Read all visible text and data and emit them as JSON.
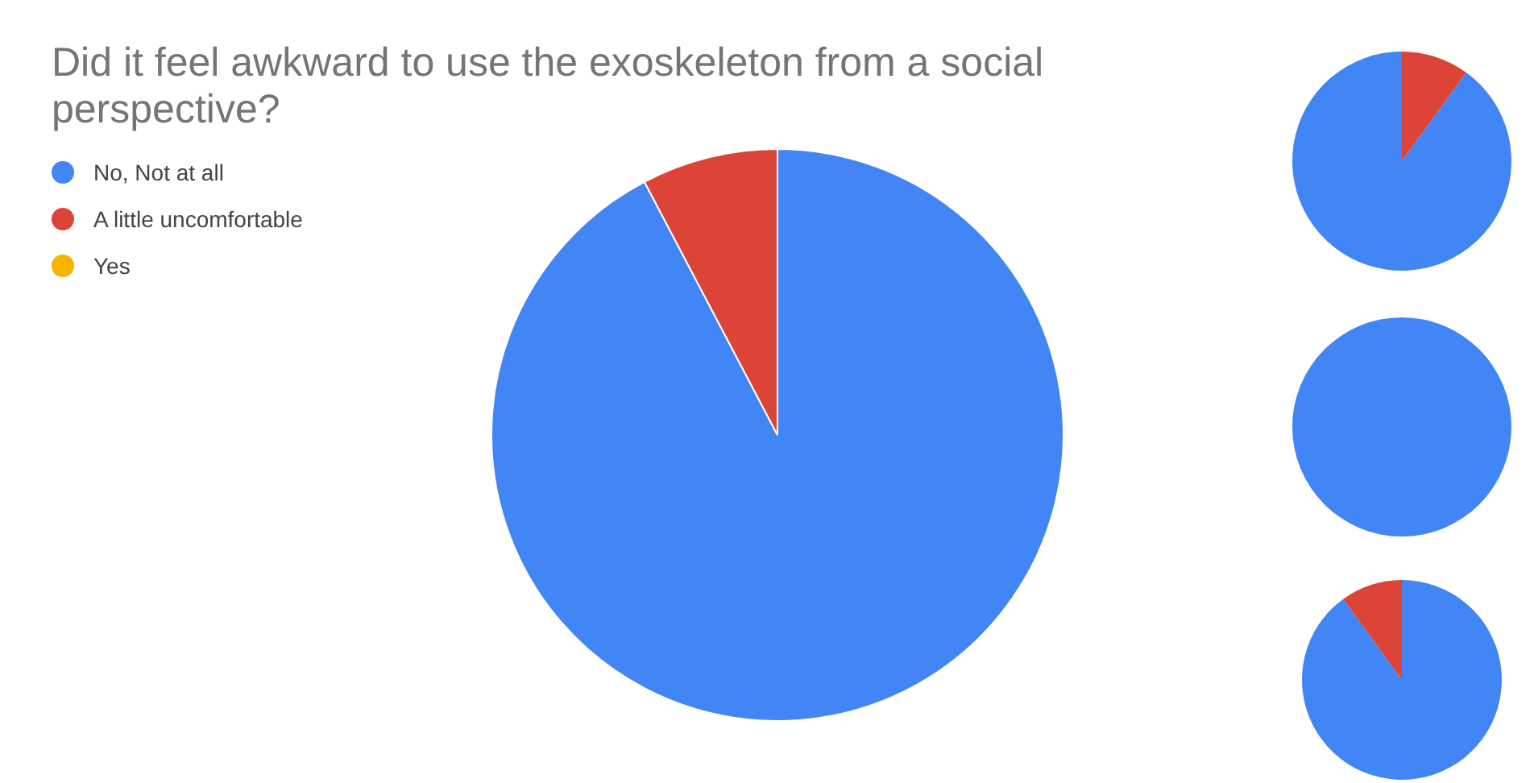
{
  "chart_data": [
    {
      "type": "pie",
      "title": "Did it feel awkward to use the exoskeleton from a social perspective?",
      "categories": [
        "No, Not at all",
        "A little uncomfortable",
        "Yes"
      ],
      "values": [
        92.3,
        7.7,
        0
      ],
      "colors": [
        "#4285f4",
        "#db4437",
        "#f4b400"
      ],
      "legend": "top left"
    },
    {
      "type": "pie",
      "categories": [
        null,
        null,
        null
      ],
      "values": [
        10,
        90,
        0
      ],
      "colors": [
        "#db4437",
        "#4285f4",
        "#f4b400"
      ]
    },
    {
      "type": "pie",
      "categories": [
        null,
        null,
        null
      ],
      "values": [
        100,
        0,
        0
      ],
      "colors": [
        "#4285f4",
        "#db4437",
        "#f4b400"
      ]
    },
    {
      "type": "pie",
      "categories": [
        null,
        null,
        null
      ],
      "values": [
        90,
        10,
        0
      ],
      "colors": [
        "#4285f4",
        "#db4437",
        "#f4b400"
      ]
    }
  ]
}
